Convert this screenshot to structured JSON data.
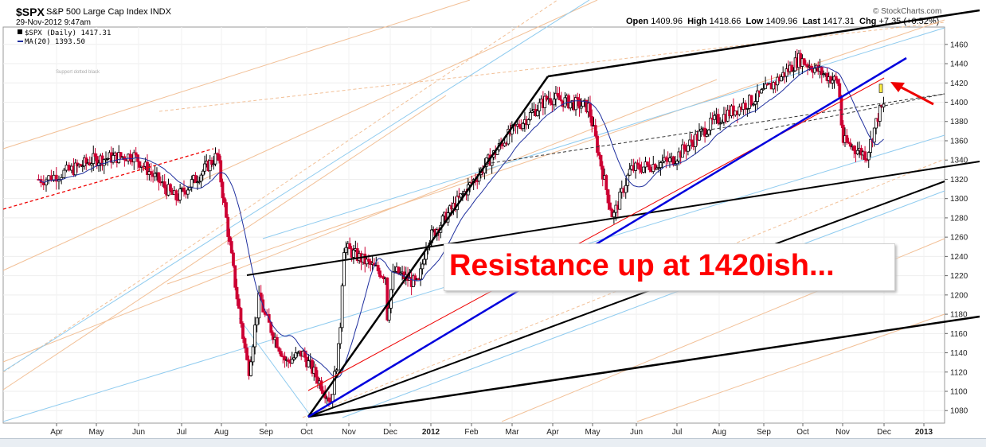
{
  "header": {
    "ticker": "$SPX",
    "name": "S&P 500 Large Cap Index INDX",
    "date": "29-Nov-2012 9:47am",
    "brand": "© StockCharts.com",
    "open_label": "Open",
    "open": "1409.96",
    "high_label": "High",
    "high": "1418.66",
    "low_label": "Low",
    "low": "1409.96",
    "last_label": "Last",
    "last": "1417.31",
    "chg_label": "Chg",
    "chg": "+7.35 (+0.52%)"
  },
  "legend": {
    "price": "$SPX (Daily) 1417.31",
    "ma": "MA(20) 1393.50"
  },
  "annotation": {
    "callout": "Resistance up at 1420ish...",
    "note": "Support dotted black"
  },
  "colors": {
    "candle_up": "#000000",
    "candle_down": "#cc0033",
    "ma": "#1f2f9e",
    "callout_text": "#ff0000",
    "trend_black": "#000000",
    "trend_blue": "#0000dd",
    "trend_red": "#ee0000",
    "channel_orange": "#f2c097",
    "channel_lightblue": "#8fcbef"
  },
  "chart_data": {
    "type": "candlestick",
    "title": "$SPX S&P 500 Large Cap Index INDX",
    "x_ticks": [
      "Apr",
      "May",
      "Jun",
      "Jul",
      "Aug",
      "Sep",
      "Oct",
      "Nov",
      "Dec",
      "2012",
      "Feb",
      "Mar",
      "Apr",
      "May",
      "Jun",
      "Jul",
      "Aug",
      "Sep",
      "Oct",
      "Nov",
      "Dec",
      "2013"
    ],
    "y_ticks": [
      1080,
      1100,
      1120,
      1140,
      1160,
      1180,
      1200,
      1220,
      1240,
      1260,
      1280,
      1300,
      1320,
      1340,
      1360,
      1380,
      1400,
      1420,
      1440,
      1460
    ],
    "ylim": [
      1067,
      1478
    ],
    "series": [
      {
        "name": "$SPX (Daily)",
        "approx_closes_by_month": {
          "x": [
            "2011-03",
            "2011-04",
            "2011-05",
            "2011-06",
            "2011-07",
            "2011-08",
            "2011-09",
            "2011-10",
            "2011-11",
            "2011-12",
            "2012-01",
            "2012-02",
            "2012-03",
            "2012-04",
            "2012-05",
            "2012-06",
            "2012-07",
            "2012-08",
            "2012-09",
            "2012-10",
            "2012-11",
            "2012-11-29"
          ],
          "y": [
            1320,
            1340,
            1345,
            1300,
            1345,
            1200,
            1140,
            1250,
            1220,
            1255,
            1310,
            1365,
            1405,
            1395,
            1330,
            1340,
            1380,
            1405,
            1445,
            1420,
            1390,
            1417.31
          ]
        }
      },
      {
        "name": "MA(20)",
        "last": 1393.5
      }
    ],
    "annotations": [
      "Resistance up at 1420ish...",
      "Support dotted black"
    ]
  }
}
